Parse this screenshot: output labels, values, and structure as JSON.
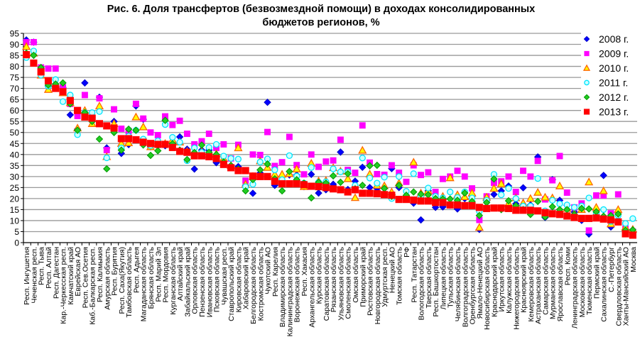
{
  "chart_data": {
    "type": "scatter",
    "title": [
      "Рис. 6. Доля трансфертов (безвозмездной помощи) в доходах консолидированных",
      "бюджетов регионов, %"
    ],
    "xlabel": "",
    "ylabel": "",
    "ylim": [
      0,
      95
    ],
    "ytick_step": 5,
    "grid": true,
    "legend_position": "top-right",
    "categories": [
      "Респ. Ингушетия",
      "Чеченская респ.",
      "Респ. Тыва",
      "Респ. Алтай",
      "Респ. Дагестан",
      "Кар.-Черкесская респ.",
      "Камчатский край",
      "Еврейская АО",
      "Респ. Сев.Осетия",
      "Каб.-Балкарская респ.",
      "Респ. Калмыкия",
      "Амурская область",
      "Респ. Бурятия",
      "Респ. Саха(Якутия)",
      "Тамбовская область",
      "Респ. Адыгея",
      "Магаданская область",
      "Брянская область",
      "Респ. Марий Эл",
      "Респ. Мордовия",
      "Курганская область",
      "Алтайский край",
      "Забайкальский край",
      "Орловская область",
      "Пензенская область",
      "Ивановская область",
      "Псковская область",
      "Чувашская респ.",
      "Ставропольский край",
      "Кировская область",
      "Хабаровский край",
      "Белгородская область",
      "Костромская область",
      "Чукотский АО",
      "Респ. Карелия",
      "Владимирская область",
      "Калининградская область",
      "Воронежская область",
      "Респ. Хакасия",
      "Архангельская область",
      "Курская область",
      "Саратовская область",
      "Рязанская область",
      "Ульяновская область",
      "Смоленская область",
      "Омская область",
      "Приморский край",
      "Ростовская область",
      "Новгородская область",
      "Удмуртская респ.",
      "Ненецкий АО",
      "Томская область",
      "РФ",
      "Респ. Татарстан",
      "Вологодская область",
      "Тверская область",
      "Респ. Башкортостан",
      "Липецкая область",
      "Тульская область",
      "Челябинская область",
      "Волгоградская область",
      "Оренбургская область",
      "Ямало-Ненецкий АО",
      "Новосибирская область",
      "Краснодарский край",
      "Иркутская область",
      "Калужская область",
      "Нижегородская область",
      "Красноярский край",
      "Кемеровская область",
      "Астраханская область",
      "Самарская область",
      "Мурманская область",
      "Ярославская область",
      "Респ. Коми",
      "Ленинградская область",
      "Московская область",
      "Тюменская область",
      "Пермский край",
      "Сахалинская область",
      "С.-Петербург",
      "Свердловская область",
      "Ханты-Мансийский АО",
      "Москва"
    ],
    "series": [
      {
        "name": "2008 г.",
        "marker": "diamond",
        "color": "#0000ff",
        "stroke": "#0000cc",
        "values": [
          92,
          91,
          79,
          71,
          72,
          70.5,
          58,
          51.5,
          72.5,
          57,
          66,
          43,
          55,
          40.5,
          44.5,
          62,
          56,
          43.5,
          44,
          44,
          45,
          48,
          42.4,
          33.4,
          42,
          42,
          36.3,
          36.6,
          35,
          34.5,
          26,
          22.4,
          31.6,
          63.7,
          26,
          30.2,
          30.7,
          30.7,
          25.4,
          31,
          22.5,
          24,
          26.5,
          41.1,
          24.1,
          27.9,
          34.2,
          25,
          24.5,
          24.6,
          33.6,
          25,
          20,
          17.9,
          10.3,
          23.5,
          16,
          16.2,
          17,
          15.3,
          20,
          21,
          6,
          19,
          21.9,
          23.5,
          25.7,
          17.6,
          24.9,
          17.1,
          38.9,
          11.4,
          28.6,
          19.2,
          17,
          13.9,
          10.1,
          3.9,
          14,
          30.5,
          7.1,
          10,
          5,
          4
        ]
      },
      {
        "name": "2009 г.",
        "marker": "square",
        "color": "#ff00ff",
        "stroke": "#ff00ff",
        "values": [
          91,
          91,
          79.5,
          79,
          79,
          70.5,
          63,
          57.5,
          67,
          56,
          65.5,
          42,
          60.5,
          51.7,
          50.6,
          63,
          56.3,
          50,
          48.8,
          57.3,
          53.4,
          55.3,
          49.4,
          44.6,
          46,
          49.4,
          43,
          44.6,
          38.2,
          44.4,
          28.1,
          40,
          39.8,
          50.2,
          34.8,
          36.5,
          48,
          35.2,
          31,
          40,
          34.4,
          36.8,
          37.3,
          46.7,
          33,
          31.7,
          53.2,
          36.3,
          31.1,
          30.8,
          35.1,
          31.7,
          27.6,
          35.1,
          30.7,
          31.9,
          23,
          28.9,
          30,
          32.6,
          30,
          24.6,
          10.3,
          21,
          27.1,
          27.8,
          30,
          23,
          32.6,
          30,
          37.1,
          19.6,
          28.3,
          39.3,
          22.7,
          16,
          17.8,
          5.5,
          21.4,
          21.4,
          13.3,
          21.9,
          6.4,
          5
        ]
      },
      {
        "name": "2010 г.",
        "marker": "triangle",
        "color": "#ffff00",
        "stroke": "#ff6600",
        "values": [
          89,
          86,
          76,
          69.5,
          72,
          68,
          63.5,
          52,
          60,
          54,
          62,
          39,
          54,
          45,
          45.3,
          57,
          52.5,
          43.5,
          45,
          45,
          46.7,
          45.6,
          41.4,
          41.4,
          41.4,
          40,
          40.3,
          38.2,
          35,
          43,
          26.5,
          30,
          37.1,
          34.1,
          31,
          31,
          31.3,
          33.4,
          25.4,
          36,
          28,
          28.2,
          34,
          32.4,
          29,
          20.4,
          41.9,
          31.1,
          26,
          25.8,
          23,
          27,
          22,
          36.5,
          22.5,
          23.5,
          20.5,
          21,
          29.4,
          21.7,
          20.8,
          22.5,
          6.9,
          20.6,
          24.6,
          26.7,
          17.8,
          20.3,
          18,
          20,
          22.8,
          20.6,
          20.3,
          25.7,
          15.5,
          13.3,
          15,
          27.5,
          16,
          23.5,
          8.5,
          15,
          7,
          6
        ]
      },
      {
        "name": "2011 г.",
        "marker": "circle",
        "color": "#ccffff",
        "stroke": "#00e5ff",
        "values": [
          84,
          87,
          76,
          71,
          74,
          64,
          67,
          49,
          59,
          59,
          59.5,
          38.5,
          51,
          43,
          48.3,
          51,
          47,
          44,
          46.2,
          53.6,
          47.8,
          45.6,
          37.2,
          43,
          41,
          43.2,
          44.6,
          39.3,
          38.2,
          37.9,
          25.4,
          26.5,
          36.6,
          38,
          33,
          28.6,
          39.5,
          30.2,
          27,
          34.1,
          27.4,
          27.6,
          33.5,
          32.1,
          32.1,
          26,
          38.4,
          29.3,
          27,
          29.7,
          20,
          30,
          23.3,
          31.3,
          21,
          24.8,
          21,
          20.3,
          23,
          20.5,
          23,
          20.3,
          14.2,
          19.2,
          31,
          21.7,
          24.6,
          20,
          16.6,
          16.6,
          29.1,
          14.4,
          19.2,
          17.6,
          17.1,
          16,
          16.6,
          20.3,
          13.1,
          15,
          9.6,
          12.3,
          8.7,
          10.9
        ]
      },
      {
        "name": "2012 г.",
        "marker": "diamond",
        "color": "#22cc22",
        "stroke": "#009900",
        "values": [
          86,
          85,
          79.5,
          71.5,
          72,
          72.5,
          63,
          51,
          59,
          55,
          47,
          33.5,
          50,
          42,
          51.5,
          51,
          44.3,
          39.6,
          41.7,
          55.5,
          44.9,
          42,
          37.7,
          40.9,
          44.3,
          41,
          40,
          36.6,
          35,
          33.4,
          23.5,
          28.6,
          33,
          35.7,
          29,
          23.5,
          32.3,
          28.6,
          27,
          20.3,
          27.4,
          27,
          30.3,
          27.4,
          31.3,
          24.4,
          26,
          34.9,
          35.1,
          24.6,
          21,
          26,
          21.5,
          23,
          22,
          21.7,
          20,
          19.8,
          19.8,
          19.2,
          22.5,
          18.7,
          12.3,
          18.2,
          28.9,
          15,
          19,
          16.8,
          15,
          12.8,
          18.7,
          11.7,
          16.3,
          15,
          15,
          12.8,
          15.5,
          15.3,
          14,
          12,
          12.3,
          13,
          5.6,
          5.8
        ]
      },
      {
        "name": "2013 г.",
        "marker": "square",
        "color": "#ff0000",
        "stroke": "#ff0000",
        "values": [
          85.3,
          81.5,
          77.5,
          73.5,
          70,
          68.5,
          64.5,
          60,
          57,
          56.5,
          54,
          53,
          52,
          47.2,
          47.2,
          46.7,
          45.6,
          45,
          44.6,
          44.6,
          43.2,
          41.4,
          41,
          39.4,
          39.4,
          39,
          38.2,
          35.5,
          34,
          32.7,
          32.7,
          30.2,
          30,
          30,
          27.8,
          26.7,
          26.7,
          26.7,
          26.3,
          25.6,
          25.4,
          25,
          24.4,
          24,
          23,
          24,
          22.4,
          22.4,
          22.2,
          21.8,
          21.5,
          19.6,
          19.6,
          19.3,
          18.9,
          18.9,
          18.2,
          18.2,
          17.1,
          17.1,
          16.8,
          16.8,
          16,
          15.5,
          15.7,
          15.7,
          15.5,
          14.7,
          14.7,
          14.7,
          14.4,
          13.6,
          13.1,
          12.8,
          12.1,
          11.4,
          11,
          11,
          11.2,
          10.7,
          10.3,
          9.4,
          4,
          3.4
        ]
      }
    ]
  }
}
